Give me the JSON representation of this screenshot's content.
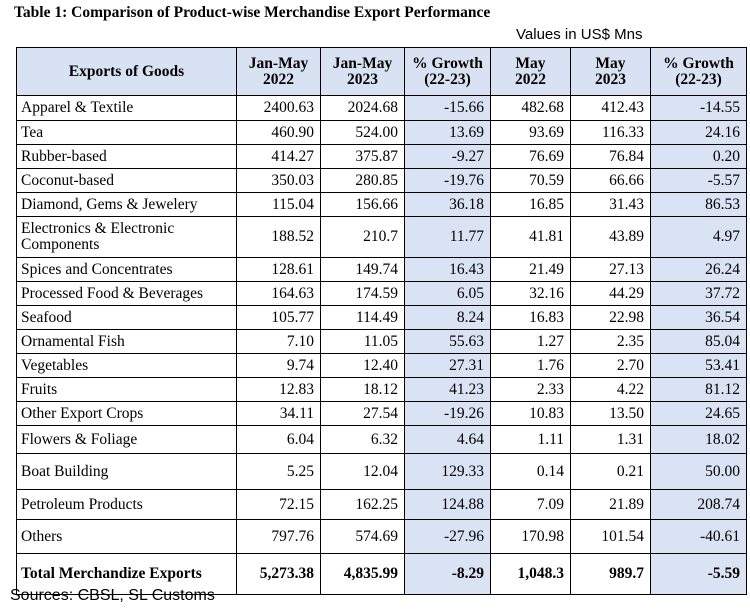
{
  "title": "Table 1: Comparison of Product-wise Merchandise Export Performance",
  "units": "Values in US$ Mns",
  "headers": {
    "goods": "Exports of Goods",
    "jm22_a": "Jan-May",
    "jm22_b": "2022",
    "jm23_a": "Jan-May",
    "jm23_b": "2023",
    "g1_a": "% Growth",
    "g1_b": "(22-23)",
    "m22_a": "May",
    "m22_b": "2022",
    "m23_a": "May",
    "m23_b": "2023",
    "g2_a": "% Growth",
    "g2_b": "(22-23)"
  },
  "rows": [
    {
      "name": "Apparel & Textile",
      "jm22": "2400.63",
      "jm23": "2024.68",
      "g1": "-15.66",
      "m22": "482.68",
      "m23": "412.43",
      "g2": "-14.55"
    },
    {
      "name": "Tea",
      "jm22": "460.90",
      "jm23": "524.00",
      "g1": "13.69",
      "m22": "93.69",
      "m23": "116.33",
      "g2": "24.16"
    },
    {
      "name": "Rubber-based",
      "jm22": "414.27",
      "jm23": "375.87",
      "g1": "-9.27",
      "m22": "76.69",
      "m23": "76.84",
      "g2": "0.20"
    },
    {
      "name": "Coconut-based",
      "jm22": "350.03",
      "jm23": "280.85",
      "g1": "-19.76",
      "m22": "70.59",
      "m23": "66.66",
      "g2": "-5.57"
    },
    {
      "name": "Diamond, Gems & Jewelery",
      "jm22": "115.04",
      "jm23": "156.66",
      "g1": "36.18",
      "m22": "16.85",
      "m23": "31.43",
      "g2": "86.53"
    },
    {
      "name": "Electronics & Electronic Components",
      "jm22": "188.52",
      "jm23": "210.7",
      "g1": "11.77",
      "m22": "41.81",
      "m23": "43.89",
      "g2": "4.97"
    },
    {
      "name": "Spices and Concentrates",
      "jm22": "128.61",
      "jm23": "149.74",
      "g1": "16.43",
      "m22": "21.49",
      "m23": "27.13",
      "g2": "26.24"
    },
    {
      "name": "Processed Food & Beverages",
      "jm22": "164.63",
      "jm23": "174.59",
      "g1": "6.05",
      "m22": "32.16",
      "m23": "44.29",
      "g2": "37.72"
    },
    {
      "name": "Seafood",
      "jm22": "105.77",
      "jm23": "114.49",
      "g1": "8.24",
      "m22": "16.83",
      "m23": "22.98",
      "g2": "36.54"
    },
    {
      "name": "Ornamental Fish",
      "jm22": "7.10",
      "jm23": "11.05",
      "g1": "55.63",
      "m22": "1.27",
      "m23": "2.35",
      "g2": "85.04"
    },
    {
      "name": "Vegetables",
      "jm22": "9.74",
      "jm23": "12.40",
      "g1": "27.31",
      "m22": "1.76",
      "m23": "2.70",
      "g2": "53.41"
    },
    {
      "name": "Fruits",
      "jm22": "12.83",
      "jm23": "18.12",
      "g1": "41.23",
      "m22": "2.33",
      "m23": "4.22",
      "g2": "81.12"
    },
    {
      "name": "Other Export Crops",
      "jm22": "34.11",
      "jm23": "27.54",
      "g1": "-19.26",
      "m22": "10.83",
      "m23": "13.50",
      "g2": "24.65"
    },
    {
      "name": "Flowers & Foliage",
      "jm22": "6.04",
      "jm23": "6.32",
      "g1": "4.64",
      "m22": "1.11",
      "m23": "1.31",
      "g2": "18.02"
    },
    {
      "name": "Boat Building",
      "jm22": "5.25",
      "jm23": "12.04",
      "g1": "129.33",
      "m22": "0.14",
      "m23": "0.21",
      "g2": "50.00"
    },
    {
      "name": "Petroleum Products",
      "jm22": "72.15",
      "jm23": "162.25",
      "g1": "124.88",
      "m22": "7.09",
      "m23": "21.89",
      "g2": "208.74"
    },
    {
      "name": "Others",
      "jm22": "797.76",
      "jm23": "574.69",
      "g1": "-27.96",
      "m22": "170.98",
      "m23": "101.54",
      "g2": "-40.61"
    }
  ],
  "total": {
    "name": "Total Merchandize Exports",
    "jm22": "5,273.38",
    "jm23": "4,835.99",
    "g1": "-8.29",
    "m22": "1,048.3",
    "m23": "989.7",
    "g2": "-5.59"
  },
  "source": "Sources: CBSL, SL Customs"
}
